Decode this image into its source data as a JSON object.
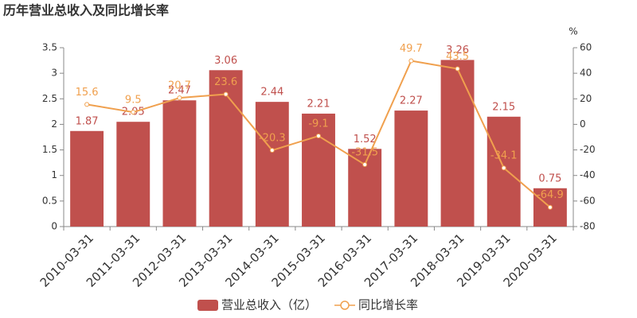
{
  "chart_data": {
    "type": "bar",
    "title": "历年营业总收入及同比增长率",
    "categories": [
      "2010-03-31",
      "2011-03-31",
      "2012-03-31",
      "2013-03-31",
      "2014-03-31",
      "2015-03-31",
      "2016-03-31",
      "2017-03-31",
      "2018-03-31",
      "2019-03-31",
      "2020-03-31"
    ],
    "series": [
      {
        "name": "营业总收入（亿）",
        "color": "#c0504d",
        "values": [
          1.87,
          2.05,
          2.47,
          3.06,
          2.44,
          2.21,
          1.52,
          2.27,
          3.26,
          2.15,
          0.75
        ]
      },
      {
        "name": "同比增长率",
        "type": "line",
        "axis": "y2",
        "color": "#f0a04e",
        "values": [
          15.6,
          9.5,
          20.7,
          23.6,
          -20.3,
          -9.1,
          -31.5,
          49.7,
          43.5,
          -34.1,
          -64.9
        ]
      }
    ],
    "ylim": [
      0,
      3.5
    ],
    "yticks": [
      0,
      0.5,
      1,
      1.5,
      2,
      2.5,
      3,
      3.5
    ],
    "y2label": "%",
    "y2lim": [
      -80,
      60
    ],
    "y2ticks": [
      -80,
      -60,
      -40,
      -20,
      0,
      20,
      40,
      60
    ],
    "grid": false,
    "legend": "bottom"
  }
}
